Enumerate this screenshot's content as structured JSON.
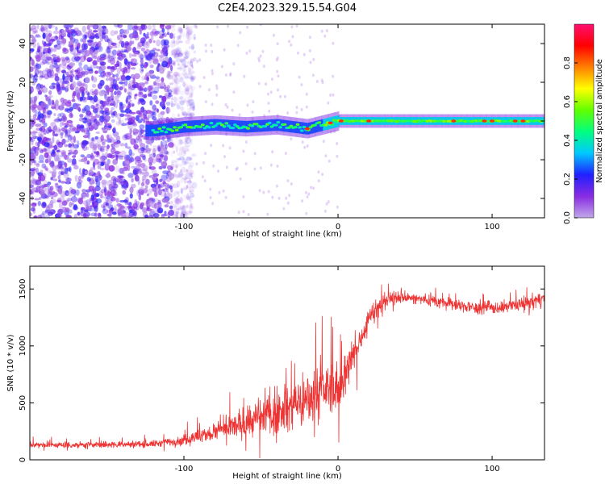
{
  "figure": {
    "title": "C2E4.2023.329.15.54.G04"
  },
  "chart_data": [
    {
      "type": "heatmap",
      "xlabel": "Height of straight line (km)",
      "ylabel": "Frequency (Hz)",
      "xlim": [
        -200,
        134
      ],
      "ylim": [
        -50,
        50
      ],
      "x_ticks": [
        -100,
        0,
        100
      ],
      "y_ticks": [
        -40,
        -20,
        0,
        20,
        40
      ],
      "colorbar": {
        "label": "Normalized spectral amplitude",
        "range": [
          0,
          1
        ],
        "ticks": [
          "0.0",
          "0.2",
          "0.4",
          "0.6",
          "0.8"
        ],
        "colormap": [
          "#c0a8e8",
          "#8a2be2",
          "#2020ff",
          "#00c8ff",
          "#00ff80",
          "#60ff00",
          "#ffff00",
          "#ff8000",
          "#ff0000",
          "#ff1070"
        ]
      },
      "ridge": [
        {
          "x": -120,
          "f": -5
        },
        {
          "x": -100,
          "f": -3
        },
        {
          "x": -80,
          "f": -2
        },
        {
          "x": -60,
          "f": -3
        },
        {
          "x": -40,
          "f": -2
        },
        {
          "x": -20,
          "f": -4
        },
        {
          "x": 0,
          "f": 0
        },
        {
          "x": 20,
          "f": 0
        },
        {
          "x": 60,
          "f": 0
        },
        {
          "x": 100,
          "f": 0
        },
        {
          "x": 134,
          "f": 0
        }
      ],
      "noise_region_end_x": -108
    },
    {
      "type": "line",
      "xlabel": "Height of straight line (km)",
      "ylabel": "SNR (10 * v/v)",
      "xlim": [
        -200,
        134
      ],
      "ylim": [
        0,
        1700
      ],
      "x_ticks": [
        -100,
        0,
        100
      ],
      "y_ticks": [
        0,
        500,
        1000,
        1500
      ],
      "color": "#ee3333",
      "envelope": {
        "x": [
          -200,
          -160,
          -120,
          -100,
          -80,
          -60,
          -40,
          -20,
          -10,
          0,
          10,
          20,
          30,
          40,
          60,
          80,
          100,
          120,
          134
        ],
        "mean": [
          130,
          130,
          140,
          170,
          240,
          320,
          420,
          520,
          620,
          620,
          900,
          1250,
          1400,
          1430,
          1400,
          1350,
          1330,
          1360,
          1420
        ],
        "spread": [
          50,
          55,
          60,
          90,
          160,
          260,
          360,
          420,
          420,
          380,
          300,
          160,
          110,
          100,
          100,
          110,
          110,
          120,
          130
        ]
      }
    }
  ]
}
